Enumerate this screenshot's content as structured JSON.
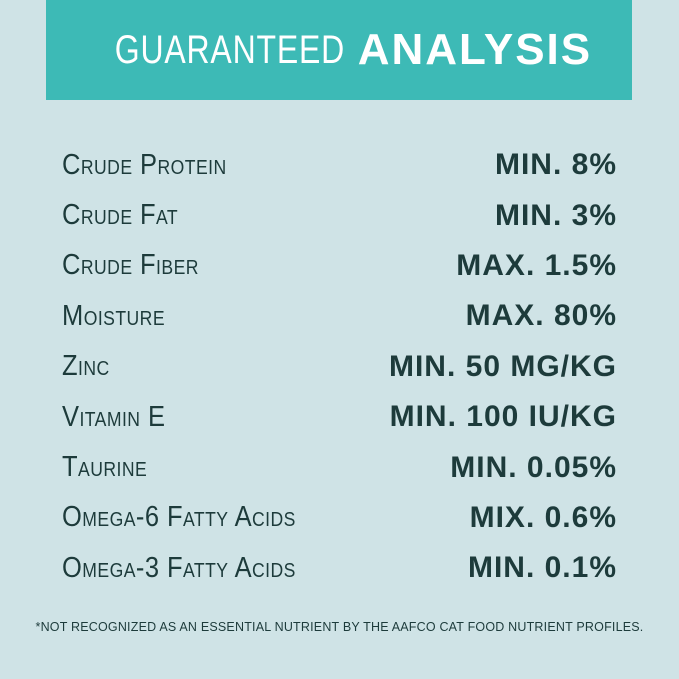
{
  "header": {
    "title_light": "GUARANTEED",
    "title_bold": "ANALYSIS"
  },
  "table": {
    "rows": [
      [
        "Crude Protein",
        "MIN. 8%"
      ],
      [
        "Crude Fat",
        "MIN. 3%"
      ],
      [
        "Crude Fiber",
        "MAX. 1.5%"
      ],
      [
        "Moisture",
        "MAX. 80%"
      ],
      [
        "Zinc",
        "MIN. 50 MG/KG"
      ],
      [
        "Vitamin E",
        "MIN. 100 IU/KG"
      ],
      [
        "Taurine",
        "MIN. 0.05%"
      ],
      [
        "Omega-6 Fatty Acids",
        "MIX. 0.6%"
      ],
      [
        "Omega-3 Fatty Acids",
        "MIN. 0.1%"
      ]
    ]
  },
  "footnote": "*NOT RECOGNIZED AS AN ESSENTIAL NUTRIENT BY THE AAFCO CAT FOOD NUTRIENT PROFILES."
}
